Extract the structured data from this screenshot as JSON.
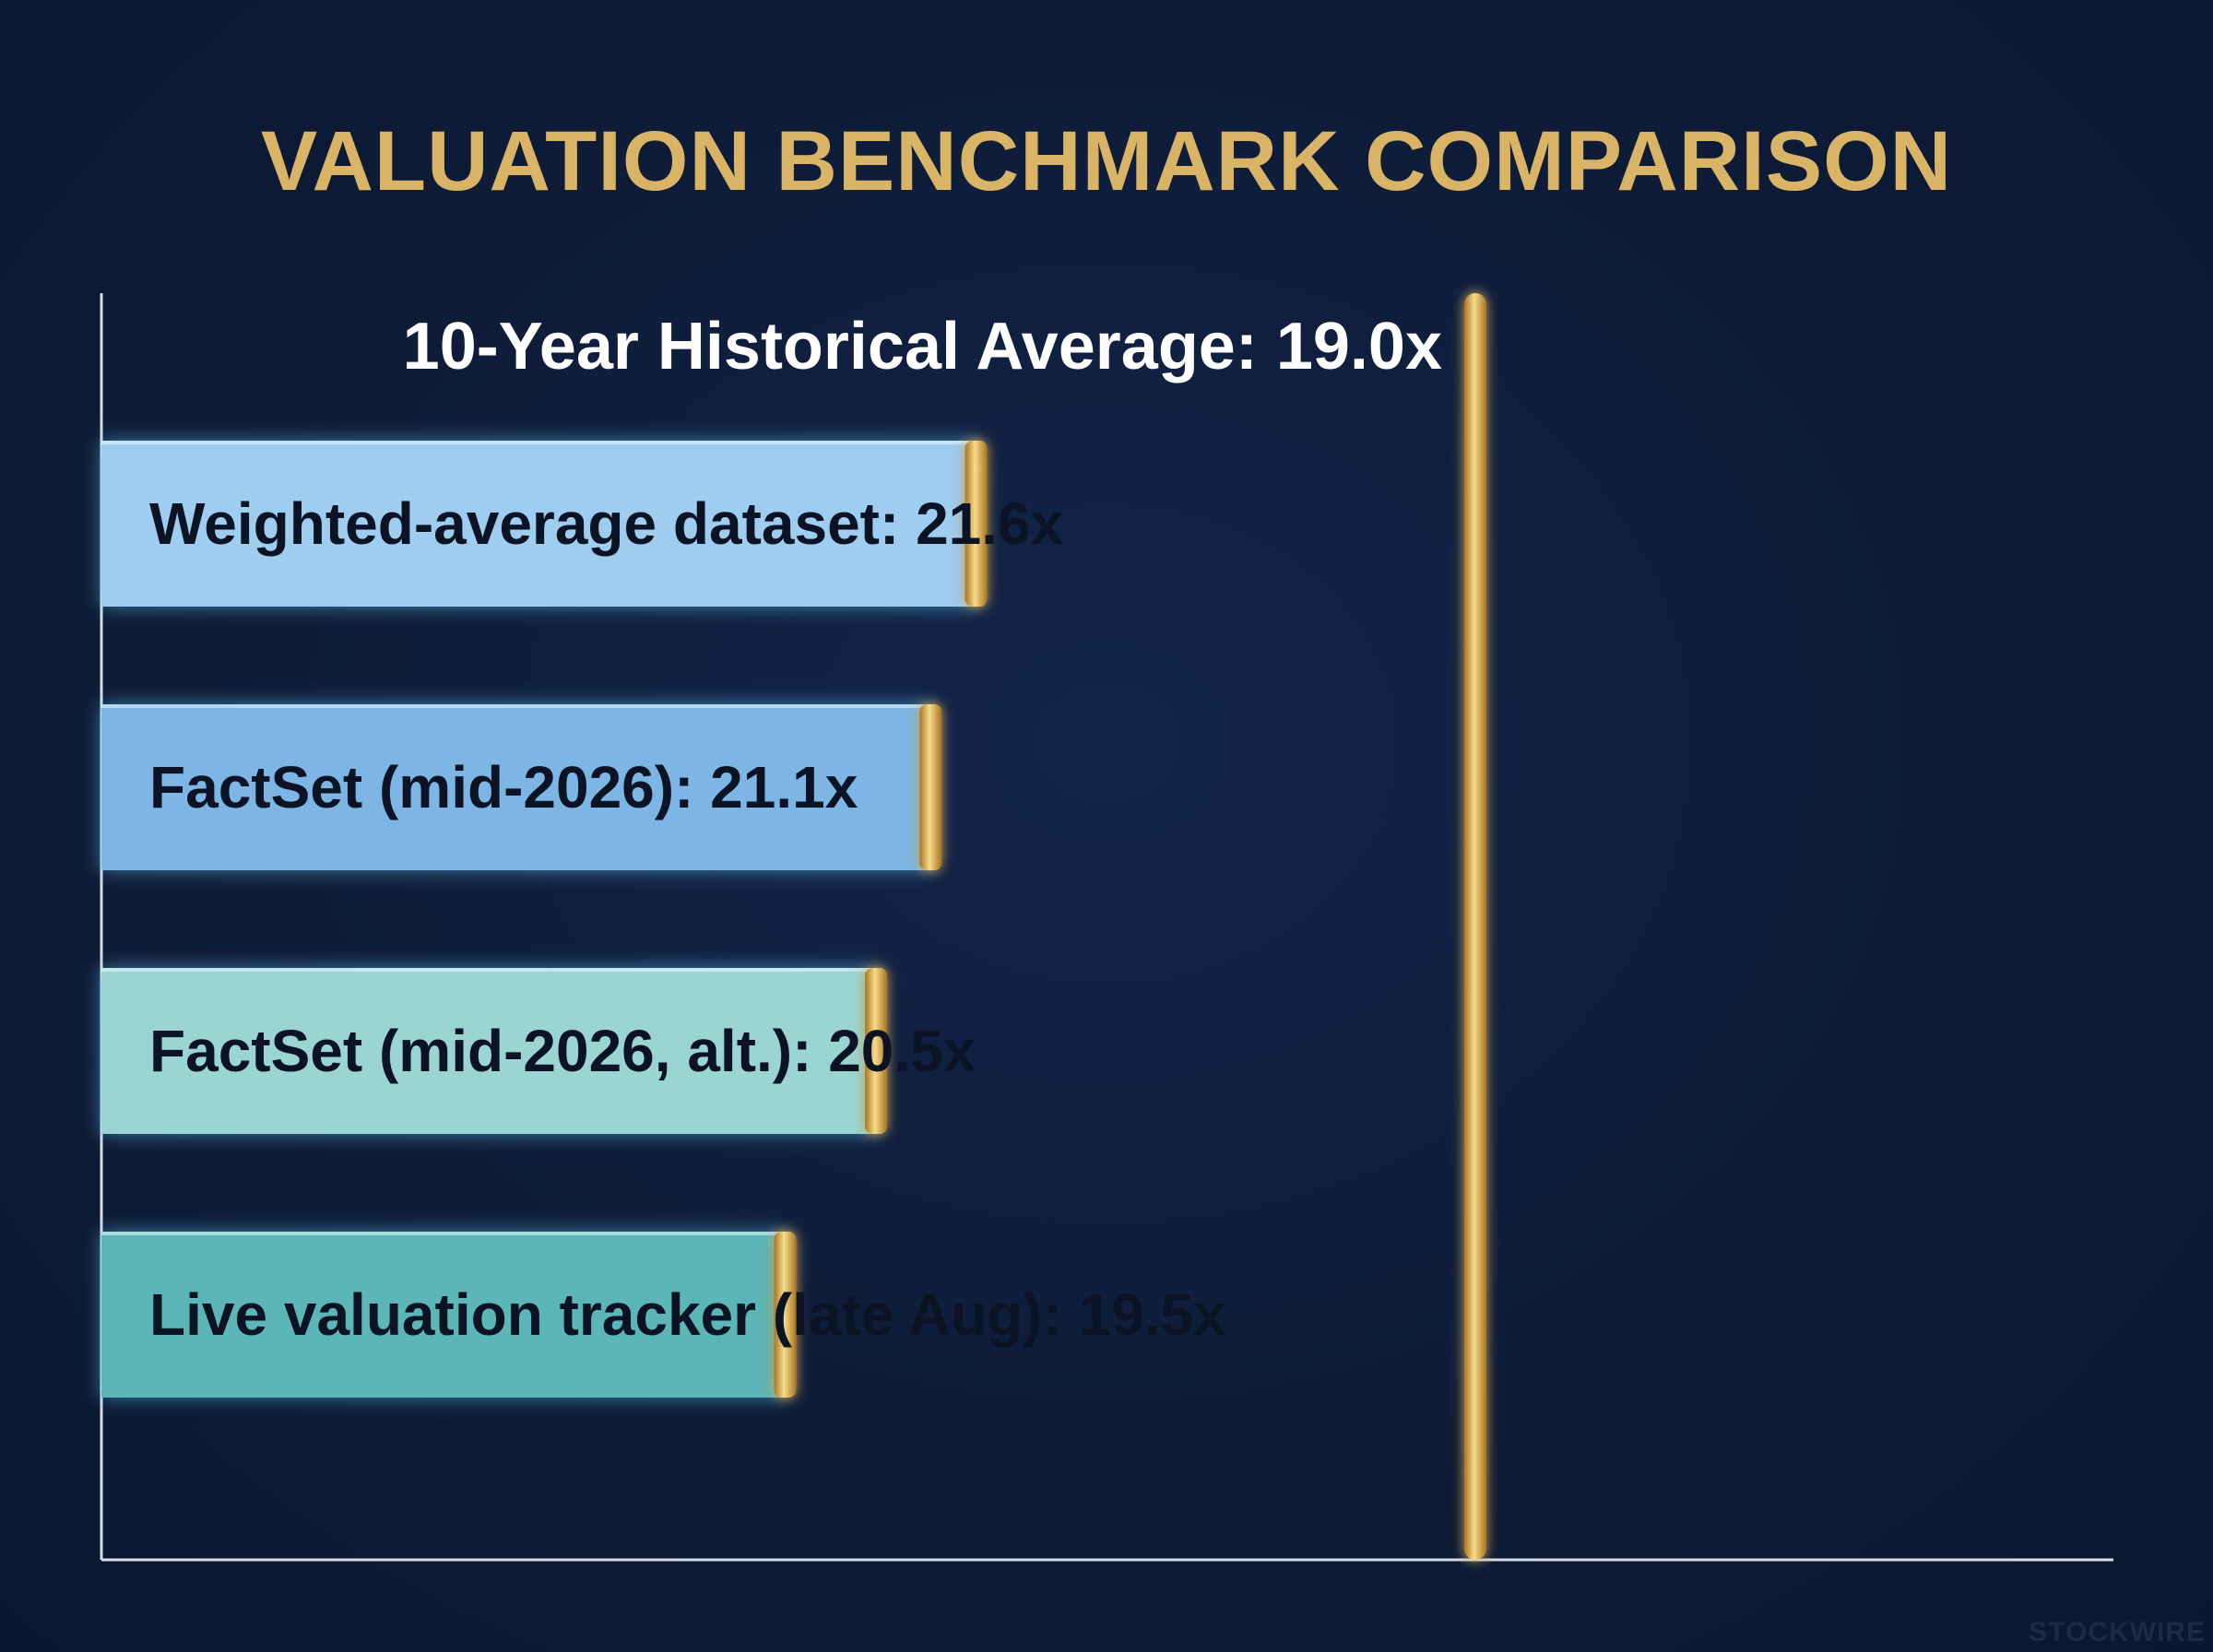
{
  "title": "VALUATION BENCHMARK COMPARISON",
  "watermark": "STOCKWIRE",
  "chart_data": {
    "type": "bar",
    "orientation": "horizontal",
    "title": "VALUATION BENCHMARK COMPARISON",
    "categories": [
      "Weighted-average dataset",
      "FactSet (mid-2026)",
      "FactSet (mid-2026, alt.)",
      "Live valuation tracker (late Aug)"
    ],
    "values": [
      21.6,
      21.1,
      20.5,
      19.5
    ],
    "bar_labels": [
      "Weighted-average dataset: 21.6x",
      "FactSet (mid-2026): 21.1x",
      "FactSet (mid-2026, alt.): 20.5x",
      "Live valuation tracker (late Aug): 19.5x"
    ],
    "bar_colors": [
      "#9fcdef",
      "#7db6e4",
      "#9ad5d3",
      "#5cb6b8"
    ],
    "reference_line": {
      "value": 19.0,
      "label": "10-Year Historical Average: 19.0x",
      "color": "#d9b466"
    },
    "accent_color": "#d9b466",
    "background_color": "#0e1c38",
    "xlabel": "",
    "ylabel": "",
    "axis_ticks_shown": false,
    "grid": false,
    "legend": false
  }
}
